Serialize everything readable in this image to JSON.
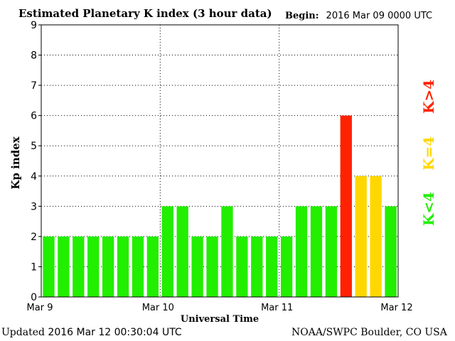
{
  "header": {
    "title": "Estimated Planetary K index (3 hour data)",
    "begin_label": "Begin:",
    "begin_value": "2016 Mar 09 0000 UTC"
  },
  "footer": {
    "updated_label": "Updated",
    "updated_value": "2016 Mar 12 00:30:04 UTC",
    "source": "NOAA/SWPC Boulder, CO USA"
  },
  "legend": [
    {
      "label": "K>4",
      "color": "#ff2200"
    },
    {
      "label": "K=4",
      "color": "#ffd700"
    },
    {
      "label": "K<4",
      "color": "#22ee00"
    }
  ],
  "chart_data": {
    "type": "bar",
    "title": "Estimated Planetary K index (3 hour data)",
    "xlabel": "Universal Time",
    "ylabel": "Kp index",
    "ylim": [
      0,
      9
    ],
    "yticks": [
      "0",
      "1",
      "2",
      "3",
      "4",
      "5",
      "6",
      "7",
      "8",
      "9"
    ],
    "xticks": [
      "Mar 9",
      "Mar 10",
      "Mar 11",
      "Mar 12"
    ],
    "grid": true,
    "values": [
      2,
      2,
      2,
      2,
      2,
      2,
      2,
      2,
      3,
      3,
      2,
      2,
      3,
      2,
      2,
      2,
      2,
      3,
      3,
      3,
      6,
      4,
      4,
      3
    ],
    "colors": {
      "below": "#22ee00",
      "equal": "#ffd700",
      "above": "#ff2200"
    }
  }
}
